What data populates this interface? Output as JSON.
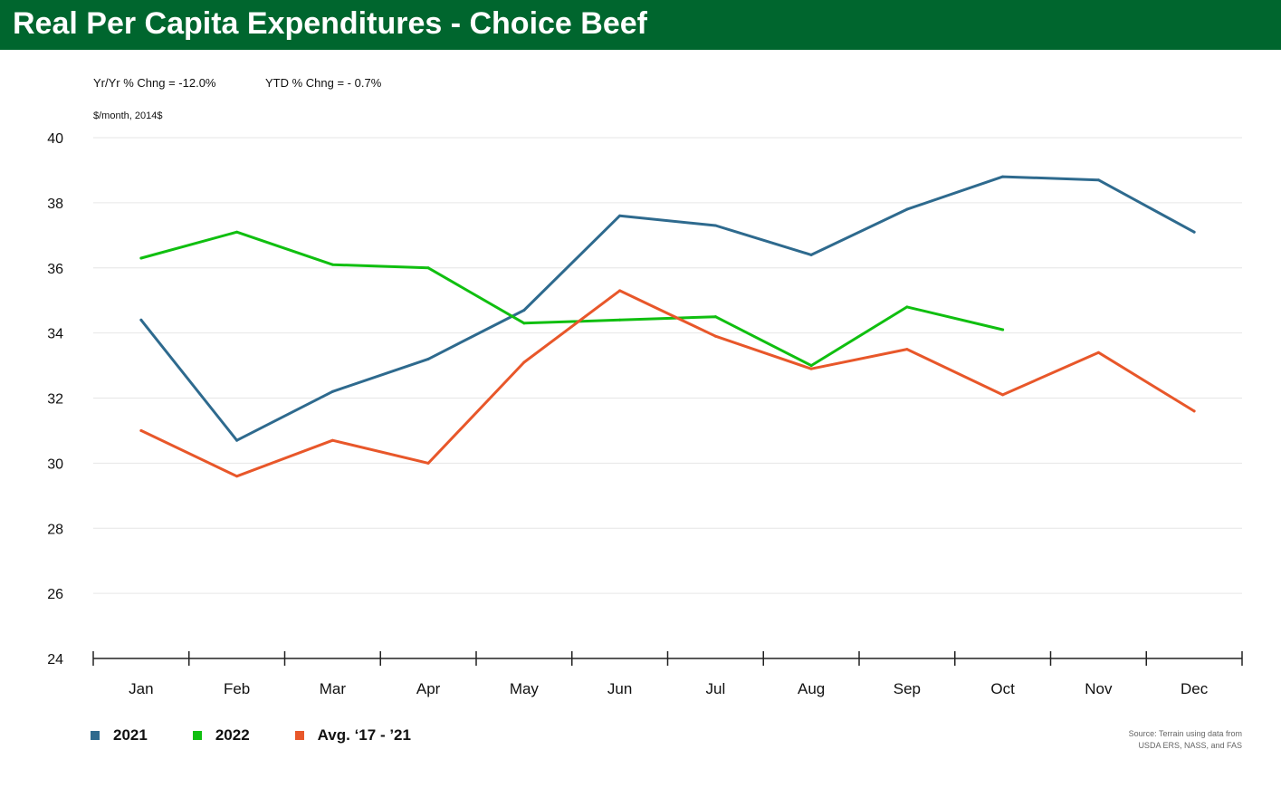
{
  "header": {
    "title": "Real Per Capita Expenditures - Choice Beef"
  },
  "stats": {
    "yoy": "Yr/Yr % Chng = -12.0%",
    "ytd": "YTD % Chng = - 0.7%"
  },
  "units_label": "$/month, 2014$",
  "source": {
    "line1": "Source: Terrain using data from",
    "line2": "USDA ERS, NASS, and FAS"
  },
  "chart_data": {
    "type": "line",
    "title": "Real Per Capita Expenditures - Choice Beef",
    "ylabel": "$/month, 2014$",
    "xlabel": "",
    "ylim": [
      24,
      40
    ],
    "yticks": [
      24,
      26,
      28,
      30,
      32,
      34,
      36,
      38,
      40
    ],
    "grid": true,
    "legend_position": "bottom-left",
    "categories": [
      "Jan",
      "Feb",
      "Mar",
      "Apr",
      "May",
      "Jun",
      "Jul",
      "Aug",
      "Sep",
      "Oct",
      "Nov",
      "Dec"
    ],
    "series": [
      {
        "name": "2021",
        "color": "#2e6a8e",
        "values": [
          34.4,
          30.7,
          32.2,
          33.2,
          34.7,
          37.6,
          37.3,
          36.4,
          37.8,
          38.8,
          38.7,
          37.1
        ]
      },
      {
        "name": "2022",
        "color": "#10bf10",
        "values": [
          36.3,
          37.1,
          36.1,
          36.0,
          34.3,
          34.4,
          34.5,
          33.0,
          34.8,
          34.1,
          null,
          null
        ]
      },
      {
        "name": "Avg. ‘17 - ’21",
        "color": "#e8572a",
        "values": [
          31.0,
          29.6,
          30.7,
          30.0,
          33.1,
          35.3,
          33.9,
          32.9,
          33.5,
          32.1,
          33.4,
          31.6
        ]
      }
    ]
  }
}
